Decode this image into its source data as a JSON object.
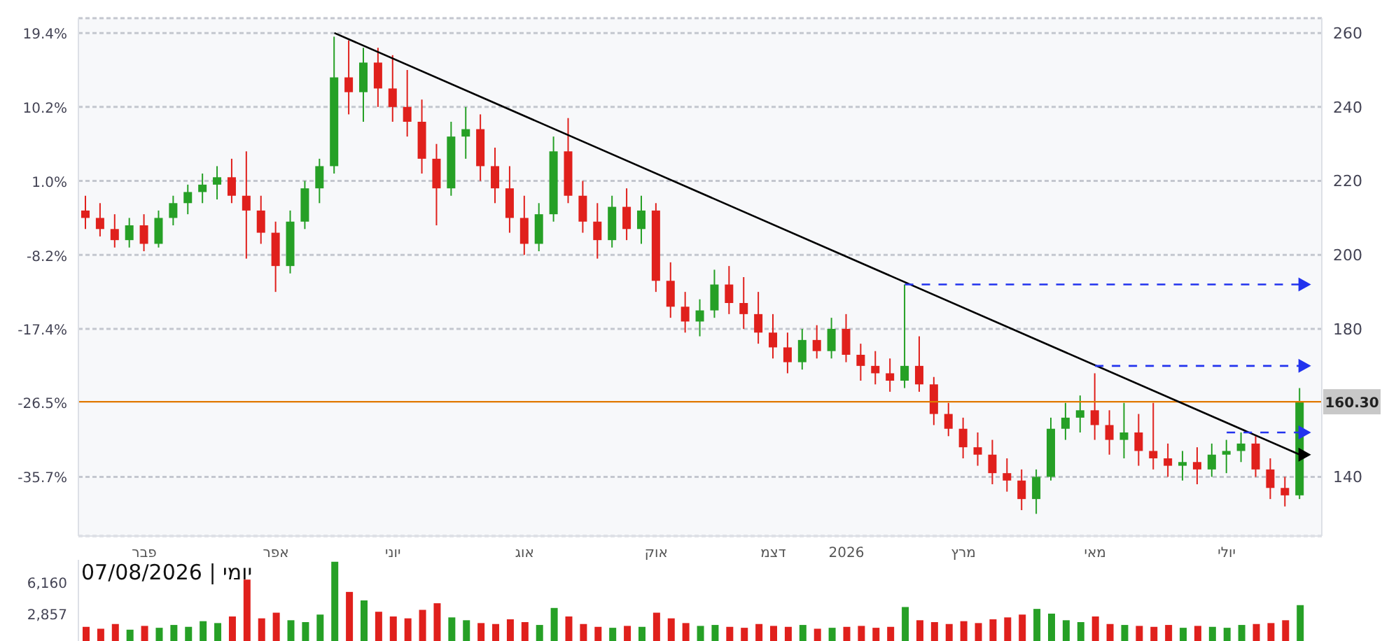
{
  "chart_data": [
    {
      "type": "candlestick",
      "categories": [
        null,
        null,
        null,
        null,
        "פבר",
        null,
        null,
        null,
        null,
        null,
        null,
        null,
        null,
        "אפר",
        null,
        null,
        null,
        null,
        null,
        null,
        null,
        "יוני",
        null,
        null,
        null,
        null,
        null,
        null,
        null,
        null,
        "אוג",
        null,
        null,
        null,
        null,
        null,
        null,
        null,
        null,
        "אוק",
        null,
        null,
        null,
        null,
        null,
        null,
        null,
        "דצמ",
        null,
        null,
        null,
        null,
        "2026",
        null,
        null,
        null,
        null,
        null,
        null,
        null,
        "מרץ",
        null,
        null,
        null,
        null,
        null,
        null,
        null,
        null,
        "מאי",
        null,
        null,
        null,
        null,
        null,
        null,
        null,
        null,
        "יולי",
        null,
        null,
        null,
        null,
        null
      ],
      "ohlc": [
        [
          212,
          216,
          207,
          210
        ],
        [
          210,
          214,
          205,
          207
        ],
        [
          207,
          211,
          202,
          204
        ],
        [
          204,
          210,
          202,
          208
        ],
        [
          208,
          211,
          201,
          203
        ],
        [
          203,
          212,
          202,
          210
        ],
        [
          210,
          216,
          208,
          214
        ],
        [
          214,
          219,
          211,
          217
        ],
        [
          217,
          222,
          214,
          219
        ],
        [
          219,
          224,
          215,
          221
        ],
        [
          221,
          226,
          214,
          216
        ],
        [
          216,
          228,
          199,
          212
        ],
        [
          212,
          216,
          203,
          206
        ],
        [
          206,
          209,
          190,
          197
        ],
        [
          197,
          212,
          195,
          209
        ],
        [
          209,
          220,
          207,
          218
        ],
        [
          218,
          226,
          214,
          224
        ],
        [
          224,
          259,
          222,
          248
        ],
        [
          248,
          258,
          238,
          244
        ],
        [
          244,
          256,
          236,
          252
        ],
        [
          252,
          256,
          240,
          245
        ],
        [
          245,
          254,
          236,
          240
        ],
        [
          240,
          250,
          232,
          236
        ],
        [
          236,
          242,
          222,
          226
        ],
        [
          226,
          230,
          208,
          218
        ],
        [
          218,
          236,
          216,
          232
        ],
        [
          232,
          240,
          226,
          234
        ],
        [
          234,
          238,
          220,
          224
        ],
        [
          224,
          229,
          214,
          218
        ],
        [
          218,
          224,
          206,
          210
        ],
        [
          210,
          216,
          200,
          203
        ],
        [
          203,
          214,
          201,
          211
        ],
        [
          211,
          232,
          209,
          228
        ],
        [
          228,
          237,
          214,
          216
        ],
        [
          216,
          220,
          206,
          209
        ],
        [
          209,
          214,
          199,
          204
        ],
        [
          204,
          216,
          202,
          213
        ],
        [
          213,
          218,
          204,
          207
        ],
        [
          207,
          216,
          203,
          212
        ],
        [
          212,
          214,
          190,
          193
        ],
        [
          193,
          198,
          183,
          186
        ],
        [
          186,
          190,
          179,
          182
        ],
        [
          182,
          188,
          178,
          185
        ],
        [
          185,
          196,
          183,
          192
        ],
        [
          192,
          197,
          184,
          187
        ],
        [
          187,
          194,
          180,
          184
        ],
        [
          184,
          190,
          176,
          179
        ],
        [
          179,
          184,
          172,
          175
        ],
        [
          175,
          179,
          168,
          171
        ],
        [
          171,
          180,
          169,
          177
        ],
        [
          177,
          181,
          172,
          174
        ],
        [
          174,
          183,
          172,
          180
        ],
        [
          180,
          184,
          171,
          173
        ],
        [
          173,
          176,
          166,
          170
        ],
        [
          170,
          174,
          165,
          168
        ],
        [
          168,
          172,
          163,
          166
        ],
        [
          166,
          192,
          164,
          170
        ],
        [
          170,
          178,
          163,
          165
        ],
        [
          165,
          167,
          154,
          157
        ],
        [
          157,
          160,
          151,
          153
        ],
        [
          153,
          156,
          145,
          148
        ],
        [
          148,
          152,
          143,
          146
        ],
        [
          146,
          150,
          138,
          141
        ],
        [
          141,
          145,
          136,
          139
        ],
        [
          139,
          142,
          131,
          134
        ],
        [
          134,
          142,
          130,
          140
        ],
        [
          140,
          156,
          139,
          153
        ],
        [
          153,
          160,
          150,
          156
        ],
        [
          156,
          162,
          152,
          158
        ],
        [
          158,
          168,
          150,
          154
        ],
        [
          154,
          158,
          146,
          150
        ],
        [
          150,
          160,
          145,
          152
        ],
        [
          152,
          157,
          143,
          147
        ],
        [
          147,
          160,
          142,
          145
        ],
        [
          145,
          149,
          140,
          143
        ],
        [
          143,
          147,
          139,
          144
        ],
        [
          144,
          148,
          138,
          142
        ],
        [
          142,
          149,
          140,
          146
        ],
        [
          146,
          150,
          141,
          147
        ],
        [
          147,
          152,
          144,
          149
        ],
        [
          149,
          151,
          140,
          142
        ],
        [
          142,
          145,
          134,
          137
        ],
        [
          137,
          140,
          132,
          135
        ],
        [
          135,
          164,
          134,
          160.3
        ]
      ],
      "colors": [
        "#e0201c",
        "#e0201c",
        "#e0201c",
        "#26a026",
        "#e0201c",
        "#26a026",
        "#26a026",
        "#26a026",
        "#26a026",
        "#26a026",
        "#e0201c",
        "#e0201c",
        "#e0201c",
        "#e0201c",
        "#26a026",
        "#26a026",
        "#26a026",
        "#26a026",
        "#e0201c",
        "#26a026",
        "#e0201c",
        "#e0201c",
        "#e0201c",
        "#e0201c",
        "#e0201c",
        "#26a026",
        "#26a026",
        "#e0201c",
        "#e0201c",
        "#e0201c",
        "#e0201c",
        "#26a026",
        "#26a026",
        "#e0201c",
        "#e0201c",
        "#e0201c",
        "#26a026",
        "#e0201c",
        "#26a026",
        "#e0201c",
        "#e0201c",
        "#e0201c",
        "#26a026",
        "#26a026",
        "#e0201c",
        "#e0201c",
        "#e0201c",
        "#e0201c",
        "#e0201c",
        "#26a026",
        "#e0201c",
        "#26a026",
        "#e0201c",
        "#e0201c",
        "#e0201c",
        "#e0201c",
        "#26a026",
        "#e0201c",
        "#e0201c",
        "#e0201c",
        "#e0201c",
        "#e0201c",
        "#e0201c",
        "#e0201c",
        "#e0201c",
        "#26a026",
        "#26a026",
        "#26a026",
        "#26a026",
        "#e0201c",
        "#e0201c",
        "#26a026",
        "#e0201c",
        "#e0201c",
        "#e0201c",
        "#26a026",
        "#e0201c",
        "#26a026",
        "#26a026",
        "#26a026",
        "#e0201c",
        "#e0201c",
        "#e0201c",
        "#26a026"
      ],
      "series": [
        {
          "type": "line",
          "color": "#000000",
          "values": [
            null,
            null,
            null,
            null,
            null,
            null,
            null,
            null,
            null,
            null,
            null,
            null,
            null,
            null,
            null,
            null,
            null,
            260,
            null,
            null,
            null,
            null,
            null,
            null,
            null,
            null,
            null,
            null,
            null,
            null,
            null,
            null,
            null,
            null,
            null,
            null,
            null,
            null,
            null,
            null,
            null,
            null,
            null,
            null,
            null,
            null,
            null,
            null,
            null,
            null,
            null,
            null,
            null,
            null,
            null,
            null,
            null,
            null,
            null,
            null,
            null,
            null,
            null,
            null,
            null,
            null,
            null,
            null,
            null,
            null,
            null,
            null,
            null,
            null,
            null,
            null,
            null,
            null,
            null,
            null,
            null,
            null,
            null,
            146
          ]
        },
        {
          "type": "line",
          "color": "#2233ee",
          "line_style": "dashed",
          "values": [
            null,
            null,
            null,
            null,
            null,
            null,
            null,
            null,
            null,
            null,
            null,
            null,
            null,
            null,
            null,
            null,
            null,
            null,
            null,
            null,
            null,
            null,
            null,
            null,
            null,
            null,
            null,
            null,
            null,
            null,
            null,
            null,
            null,
            null,
            null,
            null,
            null,
            null,
            null,
            null,
            null,
            null,
            null,
            null,
            null,
            null,
            null,
            null,
            null,
            null,
            null,
            null,
            null,
            null,
            null,
            null,
            192,
            null,
            null,
            null,
            null,
            null,
            null,
            null,
            null,
            null,
            null,
            null,
            null,
            null,
            null,
            null,
            null,
            null,
            null,
            null,
            null,
            null,
            null,
            null,
            null,
            null,
            null,
            192
          ]
        },
        {
          "type": "line",
          "color": "#2233ee",
          "line_style": "dashed",
          "values": [
            null,
            null,
            null,
            null,
            null,
            null,
            null,
            null,
            null,
            null,
            null,
            null,
            null,
            null,
            null,
            null,
            null,
            null,
            null,
            null,
            null,
            null,
            null,
            null,
            null,
            null,
            null,
            null,
            null,
            null,
            null,
            null,
            null,
            null,
            null,
            null,
            null,
            null,
            null,
            null,
            null,
            null,
            null,
            null,
            null,
            null,
            null,
            null,
            null,
            null,
            null,
            null,
            null,
            null,
            null,
            null,
            null,
            null,
            null,
            null,
            null,
            null,
            null,
            null,
            null,
            null,
            null,
            null,
            null,
            170,
            null,
            null,
            null,
            null,
            null,
            null,
            null,
            null,
            null,
            null,
            null,
            null,
            null,
            170
          ]
        },
        {
          "type": "line",
          "color": "#2233ee",
          "line_style": "dashed",
          "values": [
            null,
            null,
            null,
            null,
            null,
            null,
            null,
            null,
            null,
            null,
            null,
            null,
            null,
            null,
            null,
            null,
            null,
            null,
            null,
            null,
            null,
            null,
            null,
            null,
            null,
            null,
            null,
            null,
            null,
            null,
            null,
            null,
            null,
            null,
            null,
            null,
            null,
            null,
            null,
            null,
            null,
            null,
            null,
            null,
            null,
            null,
            null,
            null,
            null,
            null,
            null,
            null,
            null,
            null,
            null,
            null,
            null,
            null,
            null,
            null,
            null,
            null,
            null,
            null,
            null,
            null,
            null,
            null,
            null,
            null,
            null,
            null,
            null,
            null,
            null,
            null,
            null,
            null,
            152,
            null,
            null,
            null,
            null,
            152
          ]
        }
      ],
      "ylim": [
        124,
        264
      ],
      "yticks": [
        140,
        180,
        200,
        220,
        240,
        260
      ],
      "y2lim": [
        -43,
        21.3
      ],
      "y2ticks": [
        {
          "value": 19.4,
          "label": "19.4%"
        },
        {
          "value": 10.2,
          "label": "10.2%"
        },
        {
          "value": 1.0,
          "label": "1.0%"
        },
        {
          "value": -8.2,
          "label": "-8.2%"
        },
        {
          "value": -17.4,
          "label": "-17.4%"
        },
        {
          "value": -26.5,
          "label": "-26.5%"
        },
        {
          "value": -35.7,
          "label": "-35.7%"
        }
      ],
      "ref_lines": [
        {
          "axis": "y",
          "value": 160.3,
          "label": "160.30",
          "color": "#e07800"
        }
      ],
      "grid": "y"
    },
    {
      "type": "bar",
      "categories": [
        null,
        null,
        null,
        null,
        null,
        null,
        null,
        null,
        null,
        null,
        null,
        null,
        null,
        null,
        null,
        null,
        null,
        null,
        null,
        null,
        null,
        null,
        null,
        null,
        null,
        null,
        null,
        null,
        null,
        null,
        null,
        null,
        null,
        null,
        null,
        null,
        null,
        null,
        null,
        null,
        null,
        null,
        null,
        null,
        null,
        null,
        null,
        null,
        null,
        null,
        null,
        null,
        null,
        null,
        null,
        null,
        null,
        null,
        null,
        null,
        null,
        null,
        null,
        null,
        null,
        null,
        null,
        null,
        null,
        null,
        null,
        null,
        null,
        null,
        null,
        null,
        null,
        null,
        null,
        null,
        null,
        null,
        null,
        null
      ],
      "values": [
        1500,
        1300,
        1800,
        1200,
        1600,
        1400,
        1700,
        1500,
        2100,
        1900,
        2600,
        6500,
        2400,
        3000,
        2200,
        2000,
        2800,
        8400,
        5200,
        4300,
        3100,
        2600,
        2400,
        3300,
        4000,
        2500,
        2200,
        1900,
        1800,
        2300,
        2000,
        1700,
        3500,
        2600,
        1800,
        1500,
        1400,
        1600,
        1500,
        3000,
        2400,
        1900,
        1600,
        1700,
        1500,
        1400,
        1800,
        1600,
        1500,
        1700,
        1300,
        1400,
        1500,
        1600,
        1400,
        1500,
        3600,
        2200,
        2000,
        1800,
        2100,
        1900,
        2300,
        2500,
        2800,
        3400,
        2900,
        2200,
        2000,
        2600,
        1800,
        1700,
        1600,
        1500,
        1700,
        1400,
        1600,
        1500,
        1400,
        1700,
        1800,
        1900,
        2200,
        3800
      ],
      "colors": [
        "#e0201c",
        "#e0201c",
        "#e0201c",
        "#26a026",
        "#e0201c",
        "#26a026",
        "#26a026",
        "#26a026",
        "#26a026",
        "#26a026",
        "#e0201c",
        "#e0201c",
        "#e0201c",
        "#e0201c",
        "#26a026",
        "#26a026",
        "#26a026",
        "#26a026",
        "#e0201c",
        "#26a026",
        "#e0201c",
        "#e0201c",
        "#e0201c",
        "#e0201c",
        "#e0201c",
        "#26a026",
        "#26a026",
        "#e0201c",
        "#e0201c",
        "#e0201c",
        "#e0201c",
        "#26a026",
        "#26a026",
        "#e0201c",
        "#e0201c",
        "#e0201c",
        "#26a026",
        "#e0201c",
        "#26a026",
        "#e0201c",
        "#e0201c",
        "#e0201c",
        "#26a026",
        "#26a026",
        "#e0201c",
        "#e0201c",
        "#e0201c",
        "#e0201c",
        "#e0201c",
        "#26a026",
        "#e0201c",
        "#26a026",
        "#e0201c",
        "#e0201c",
        "#e0201c",
        "#e0201c",
        "#26a026",
        "#e0201c",
        "#e0201c",
        "#e0201c",
        "#e0201c",
        "#e0201c",
        "#e0201c",
        "#e0201c",
        "#e0201c",
        "#26a026",
        "#26a026",
        "#26a026",
        "#26a026",
        "#e0201c",
        "#e0201c",
        "#26a026",
        "#e0201c",
        "#e0201c",
        "#e0201c",
        "#26a026",
        "#e0201c",
        "#26a026",
        "#26a026",
        "#26a026",
        "#e0201c",
        "#e0201c",
        "#e0201c",
        "#26a026"
      ],
      "ylim": [
        0,
        8600
      ],
      "yticks": [
        {
          "value": 2857,
          "label": "2,857"
        },
        {
          "value": 6160,
          "label": "6,160"
        }
      ],
      "tick_labels": "y",
      "annotations": [
        "יומי | 07/08/2026"
      ]
    }
  ]
}
